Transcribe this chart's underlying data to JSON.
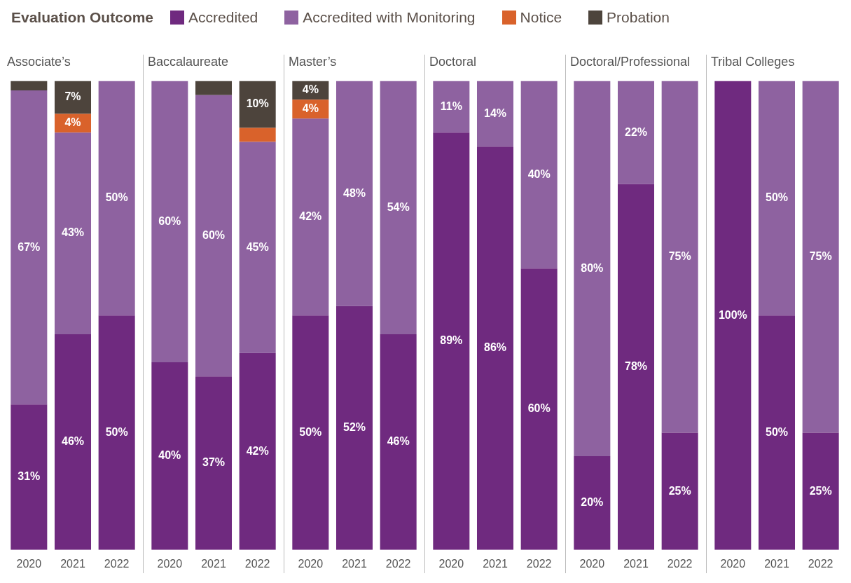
{
  "chart_data": [
    {
      "type": "bar",
      "title": "Associate’s",
      "stacked": true,
      "categories": [
        "2020",
        "2021",
        "2022"
      ],
      "ylim": [
        0,
        100
      ],
      "tick_labels": "x",
      "legend": "top",
      "legend_title": "Evaluation Outcome",
      "series": [
        {
          "name": "Accredited",
          "color": "#6f2a7f",
          "values": [
            31,
            46,
            50
          ],
          "value_labels": [
            "31%",
            "46%",
            "50%"
          ]
        },
        {
          "name": "Accredited with Monitoring",
          "color": "#8e62a0",
          "values": [
            67,
            43,
            50
          ],
          "value_labels": [
            "67%",
            "43%",
            "50%"
          ]
        },
        {
          "name": "Notice",
          "color": "#d9622b",
          "values": [
            0,
            4,
            0
          ],
          "value_labels": [
            null,
            "4%",
            null
          ]
        },
        {
          "name": "Probation",
          "color": "#4d443c",
          "values": [
            2,
            7,
            0
          ],
          "value_labels": [
            null,
            "7%",
            null
          ]
        }
      ]
    },
    {
      "type": "bar",
      "title": "Baccalaureate",
      "stacked": true,
      "categories": [
        "2020",
        "2021",
        "2022"
      ],
      "ylim": [
        0,
        100
      ],
      "tick_labels": "x",
      "series": [
        {
          "color": "#6f2a7f",
          "values": [
            40,
            37,
            42
          ],
          "value_labels": [
            "40%",
            "37%",
            "42%"
          ]
        },
        {
          "color": "#8e62a0",
          "values": [
            60,
            60,
            45
          ],
          "value_labels": [
            "60%",
            "60%",
            "45%"
          ]
        },
        {
          "color": "#d9622b",
          "values": [
            0,
            0,
            3
          ],
          "value_labels": [
            null,
            null,
            null
          ]
        },
        {
          "color": "#4d443c",
          "values": [
            0,
            3,
            10
          ],
          "value_labels": [
            null,
            null,
            "10%"
          ]
        }
      ]
    },
    {
      "type": "bar",
      "title": "Master’s",
      "stacked": true,
      "categories": [
        "2020",
        "2021",
        "2022"
      ],
      "ylim": [
        0,
        100
      ],
      "tick_labels": "x",
      "series": [
        {
          "color": "#6f2a7f",
          "values": [
            50,
            52,
            46
          ],
          "value_labels": [
            "50%",
            "52%",
            "46%"
          ]
        },
        {
          "color": "#8e62a0",
          "values": [
            42,
            48,
            54
          ],
          "value_labels": [
            "42%",
            "48%",
            "54%"
          ]
        },
        {
          "color": "#d9622b",
          "values": [
            4,
            0,
            0
          ],
          "value_labels": [
            "4%",
            null,
            null
          ]
        },
        {
          "color": "#4d443c",
          "values": [
            4,
            0,
            0
          ],
          "value_labels": [
            "4%",
            null,
            null
          ]
        }
      ]
    },
    {
      "type": "bar",
      "title": "Doctoral",
      "stacked": true,
      "categories": [
        "2020",
        "2021",
        "2022"
      ],
      "ylim": [
        0,
        100
      ],
      "tick_labels": "x",
      "series": [
        {
          "color": "#6f2a7f",
          "values": [
            89,
            86,
            60
          ],
          "value_labels": [
            "89%",
            "86%",
            "60%"
          ]
        },
        {
          "color": "#8e62a0",
          "values": [
            11,
            14,
            40
          ],
          "value_labels": [
            "11%",
            "14%",
            "40%"
          ]
        }
      ]
    },
    {
      "type": "bar",
      "title": "Doctoral/Professional",
      "stacked": true,
      "categories": [
        "2020",
        "2021",
        "2022"
      ],
      "ylim": [
        0,
        100
      ],
      "tick_labels": "x",
      "series": [
        {
          "color": "#6f2a7f",
          "values": [
            20,
            78,
            25
          ],
          "value_labels": [
            "20%",
            "78%",
            "25%"
          ]
        },
        {
          "color": "#8e62a0",
          "values": [
            80,
            22,
            75
          ],
          "value_labels": [
            "80%",
            "22%",
            "75%"
          ]
        }
      ]
    },
    {
      "type": "bar",
      "title": "Tribal Colleges",
      "stacked": true,
      "categories": [
        "2020",
        "2021",
        "2022"
      ],
      "ylim": [
        0,
        100
      ],
      "tick_labels": "x",
      "series": [
        {
          "color": "#6f2a7f",
          "values": [
            100,
            50,
            25
          ],
          "value_labels": [
            "100%",
            "50%",
            "25%"
          ]
        },
        {
          "color": "#8e62a0",
          "values": [
            0,
            50,
            75
          ],
          "value_labels": [
            null,
            "50%",
            "75%"
          ]
        }
      ]
    }
  ]
}
